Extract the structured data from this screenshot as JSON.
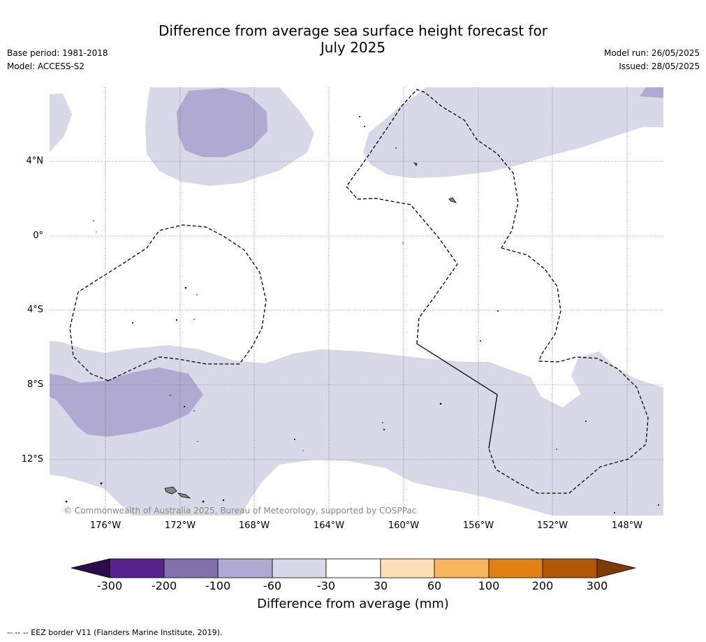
{
  "title": {
    "line1": "Difference from average sea surface height forecast for",
    "line2": "July 2025"
  },
  "meta_left": {
    "base_period": "Base period: 1981-2018",
    "model": "Model: ACCESS-S2"
  },
  "meta_right": {
    "model_run": "Model run: 26/05/2025",
    "issued": "Issued: 28/05/2025"
  },
  "map": {
    "lat_labels": [
      "4°N",
      "0°",
      "4°S",
      "8°S",
      "12°S"
    ],
    "lon_labels": [
      "176°W",
      "172°W",
      "168°W",
      "164°W",
      "160°W",
      "156°W",
      "152°W",
      "148°W"
    ],
    "copyright": "© Commonwealth of Australia 2025, Bureau of Meteorology, supported by COSPPac",
    "colors": {
      "ocean_background": "#ffffff",
      "band_minus60_minus30": "#d8d8e9",
      "band_minus100_minus60": "#b0aad2",
      "eez_border": "#000000",
      "land": "#888888"
    }
  },
  "colorbar": {
    "tick_labels": [
      "-300",
      "-200",
      "-100",
      "-60",
      "-30",
      "30",
      "60",
      "100",
      "200",
      "300"
    ],
    "colors": [
      "#2e0b4a",
      "#58228c",
      "#8273ae",
      "#b0aad2",
      "#d8d8e9",
      "#ffffff",
      "#fee0b7",
      "#f8b55e",
      "#e08112",
      "#b15806",
      "#7d3a07"
    ],
    "title": "Difference from average (mm)"
  },
  "footnote": "--  --  -- EEZ border V11 (Flanders Marine Institute, 2019)."
}
